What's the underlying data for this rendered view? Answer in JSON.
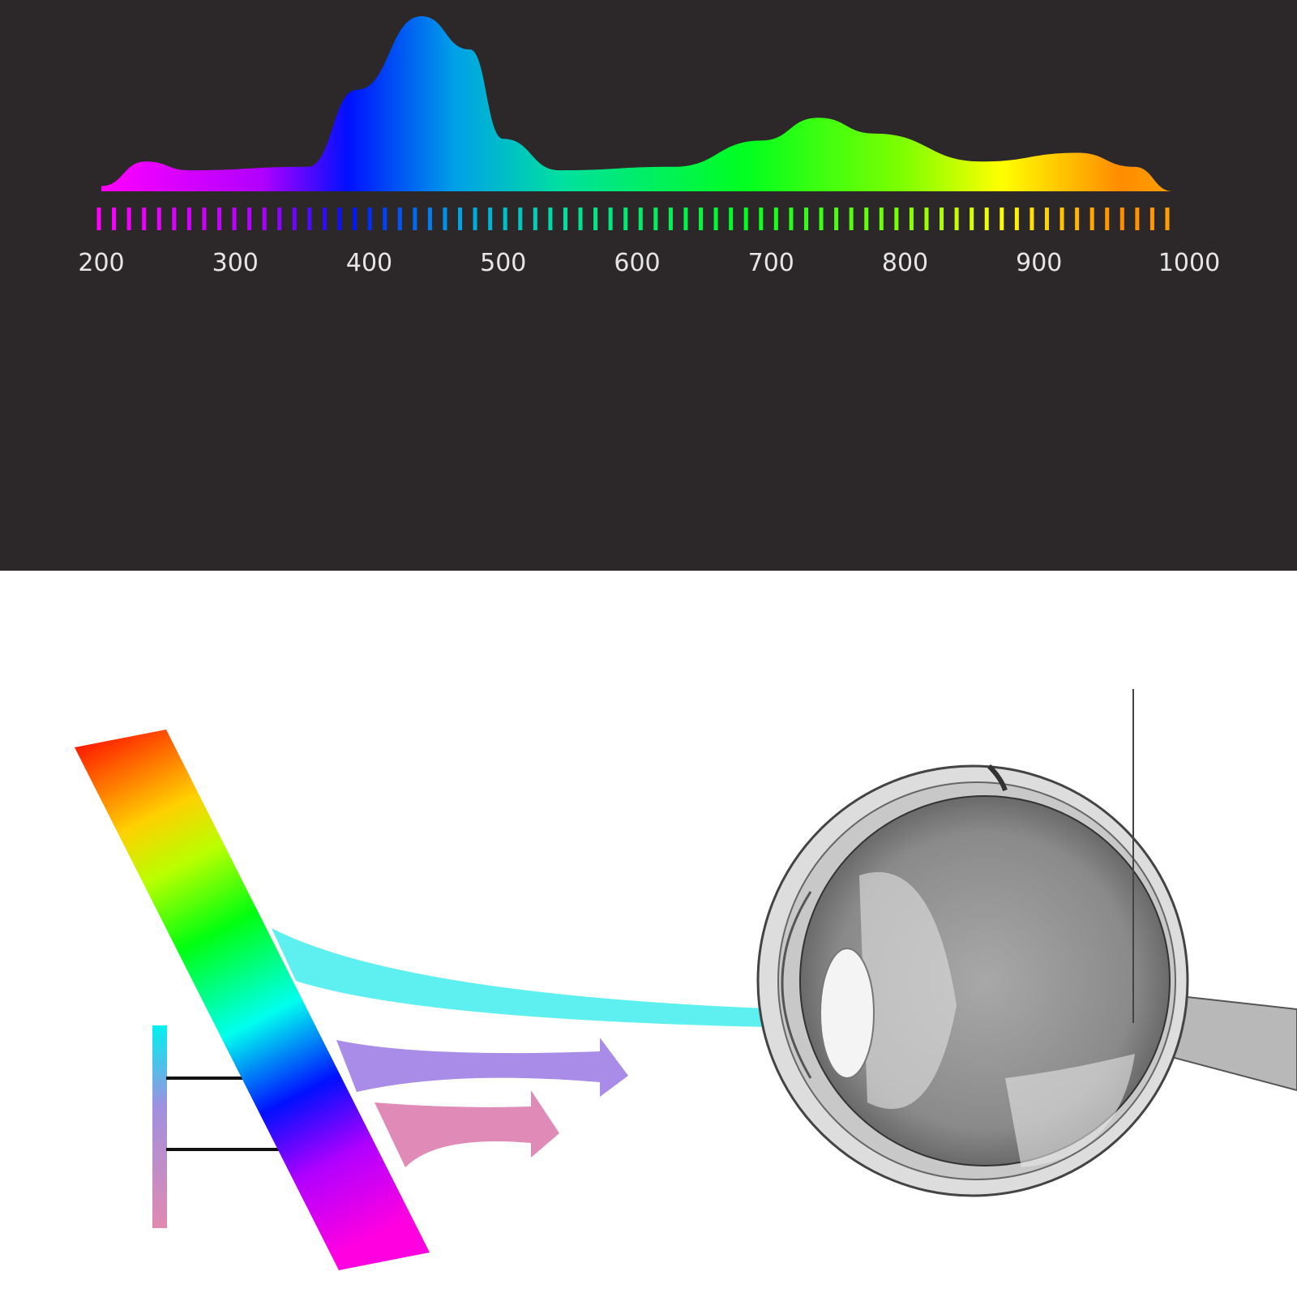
{
  "chart_data": {
    "type": "area",
    "title": "",
    "xlabel": "",
    "ylabel": "",
    "xlim": [
      200,
      1000
    ],
    "ylim": [
      0,
      1
    ],
    "x_tick_labels": [
      "200",
      "300",
      "400",
      "500",
      "600",
      "700",
      "800",
      "900",
      "1000"
    ],
    "x_ticks": [
      200,
      300,
      400,
      500,
      600,
      700,
      800,
      900,
      1000
    ],
    "grid": false,
    "series": [
      {
        "x": [
          200,
          233,
          266,
          354,
          391,
          439,
          475,
          500,
          542,
          627,
          693,
          735,
          777,
          857,
          929,
          971,
          1000
        ],
        "y": [
          0.03,
          0.17,
          0.12,
          0.14,
          0.58,
          1.0,
          0.81,
          0.3,
          0.12,
          0.14,
          0.29,
          0.42,
          0.33,
          0.17,
          0.22,
          0.14,
          0.0
        ]
      }
    ],
    "fill": "rainbow gradient by wavelength",
    "gradient_colors": [
      "#ff00ff",
      "#b000ff",
      "#0010ff",
      "#00c8ff",
      "#00e0a0",
      "#00ff20",
      "#80ff00",
      "#ffff00",
      "#ff8c00"
    ]
  },
  "diagram": {
    "beam_colors": {
      "cyan": "#5ef0f0",
      "violet": "#a98be8",
      "pink": "#e08ab8"
    },
    "eye_style": "grayscale anatomical cross-section"
  }
}
